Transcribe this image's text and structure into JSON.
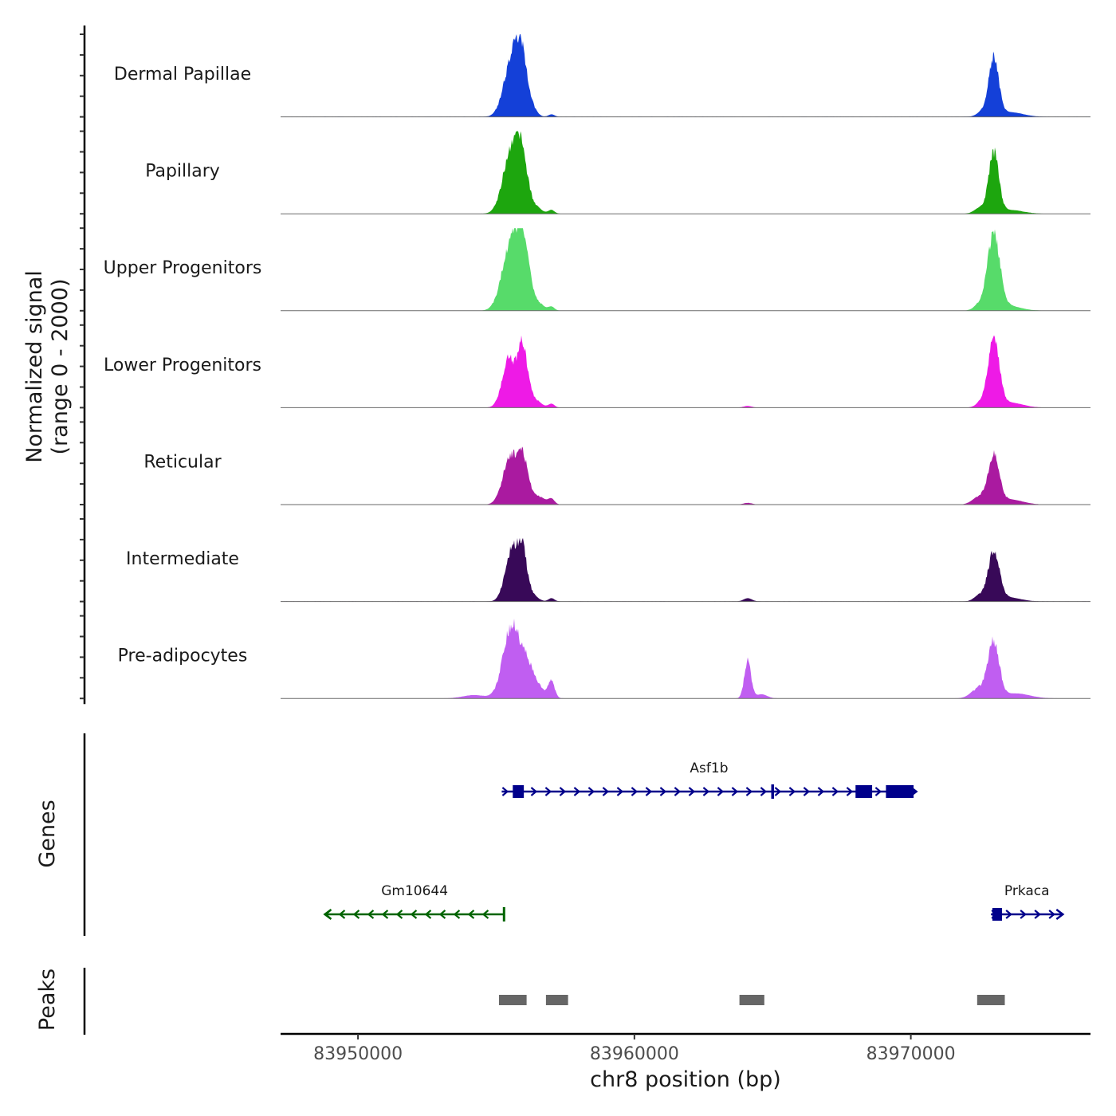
{
  "chart_data": {
    "type": "area",
    "title": "",
    "xlabel": "chr8 position (bp)",
    "ylabel_line1": "Normalized signal",
    "ylabel_line2": "(range 0 - 2000)",
    "xlim": [
      83947200,
      83976500
    ],
    "ylim": [
      0,
      2000
    ],
    "x_ticks": [
      83950000,
      83960000,
      83970000
    ],
    "x_tick_labels": [
      "83950000",
      "83960000",
      "83970000"
    ],
    "tracks": [
      {
        "name": "Dermal Papillae",
        "color": "#1440d8",
        "peaks": [
          [
            83955550,
            1450,
            280
          ],
          [
            83955900,
            1300,
            200
          ],
          [
            83956200,
            300,
            200
          ],
          [
            83957000,
            60,
            110
          ],
          [
            83973000,
            1550,
            180
          ],
          [
            83972600,
            120,
            200
          ],
          [
            83973600,
            110,
            450
          ]
        ]
      },
      {
        "name": "Papillary",
        "color": "#1da60e",
        "peaks": [
          [
            83955500,
            1500,
            280
          ],
          [
            83955900,
            1450,
            200
          ],
          [
            83956300,
            240,
            250
          ],
          [
            83957000,
            90,
            110
          ],
          [
            83973000,
            1600,
            180
          ],
          [
            83972500,
            140,
            200
          ],
          [
            83973600,
            90,
            450
          ]
        ]
      },
      {
        "name": "Upper Progenitors",
        "color": "#57db6a",
        "peaks": [
          [
            83955500,
            1700,
            300
          ],
          [
            83955950,
            1650,
            220
          ],
          [
            83956400,
            250,
            250
          ],
          [
            83957000,
            90,
            110
          ],
          [
            83973000,
            2000,
            220
          ],
          [
            83972500,
            150,
            200
          ],
          [
            83973500,
            120,
            450
          ]
        ]
      },
      {
        "name": "Lower Progenitors",
        "color": "#ee1ae6",
        "peaks": [
          [
            83955450,
            1300,
            230
          ],
          [
            83955950,
            1550,
            170
          ],
          [
            83956300,
            250,
            250
          ],
          [
            83957000,
            90,
            110
          ],
          [
            83973000,
            1800,
            200
          ],
          [
            83972600,
            150,
            200
          ],
          [
            83973600,
            120,
            450
          ],
          [
            83964100,
            40,
            150
          ]
        ]
      },
      {
        "name": "Reticular",
        "color": "#aa1aa0",
        "peaks": [
          [
            83955500,
            1250,
            260
          ],
          [
            83955950,
            1150,
            180
          ],
          [
            83956400,
            250,
            300
          ],
          [
            83957000,
            120,
            110
          ],
          [
            83973000,
            1250,
            200
          ],
          [
            83972500,
            200,
            250
          ],
          [
            83973600,
            120,
            450
          ],
          [
            83964100,
            40,
            150
          ]
        ]
      },
      {
        "name": "Intermediate",
        "color": "#380958",
        "peaks": [
          [
            83955550,
            1350,
            230
          ],
          [
            83955950,
            1250,
            170
          ],
          [
            83956300,
            150,
            200
          ],
          [
            83957000,
            80,
            110
          ],
          [
            83973000,
            1300,
            200
          ],
          [
            83972500,
            150,
            200
          ],
          [
            83973500,
            100,
            450
          ],
          [
            83964100,
            80,
            150
          ]
        ]
      },
      {
        "name": "Pre-adipocytes",
        "color": "#c05ef1",
        "peaks": [
          [
            83955550,
            1900,
            300
          ],
          [
            83956100,
            700,
            250
          ],
          [
            83956500,
            250,
            300
          ],
          [
            83957000,
            420,
            110
          ],
          [
            83964100,
            1000,
            120
          ],
          [
            83964600,
            100,
            200
          ],
          [
            83973000,
            1450,
            200
          ],
          [
            83972500,
            280,
            280
          ],
          [
            83973800,
            120,
            500
          ],
          [
            83954200,
            80,
            400
          ]
        ]
      }
    ],
    "genes": [
      {
        "name": "Asf1b",
        "strand": "+",
        "color": "#00008b",
        "start": 83955200,
        "end": 83970200,
        "exons": [
          [
            83955600,
            83956000
          ],
          [
            83964950,
            83965050
          ],
          [
            83968000,
            83968600
          ],
          [
            83969100,
            83970100
          ]
        ]
      },
      {
        "name": "Gm10644",
        "strand": "-",
        "color": "#006400",
        "start": 83948800,
        "end": 83955300,
        "exons": [
          [
            83955240,
            83955300
          ]
        ]
      },
      {
        "name": "Prkaca",
        "strand": "+",
        "color": "#00008b",
        "start": 83972900,
        "end": 83975500,
        "exons": [
          [
            83972950,
            83973300
          ]
        ]
      }
    ],
    "peaks": [
      [
        83955100,
        83956100
      ],
      [
        83956800,
        83957600
      ],
      [
        83963800,
        83964700
      ],
      [
        83972400,
        83973400
      ]
    ],
    "panel_labels": {
      "genes": "Genes",
      "peaks": "Peaks"
    }
  }
}
